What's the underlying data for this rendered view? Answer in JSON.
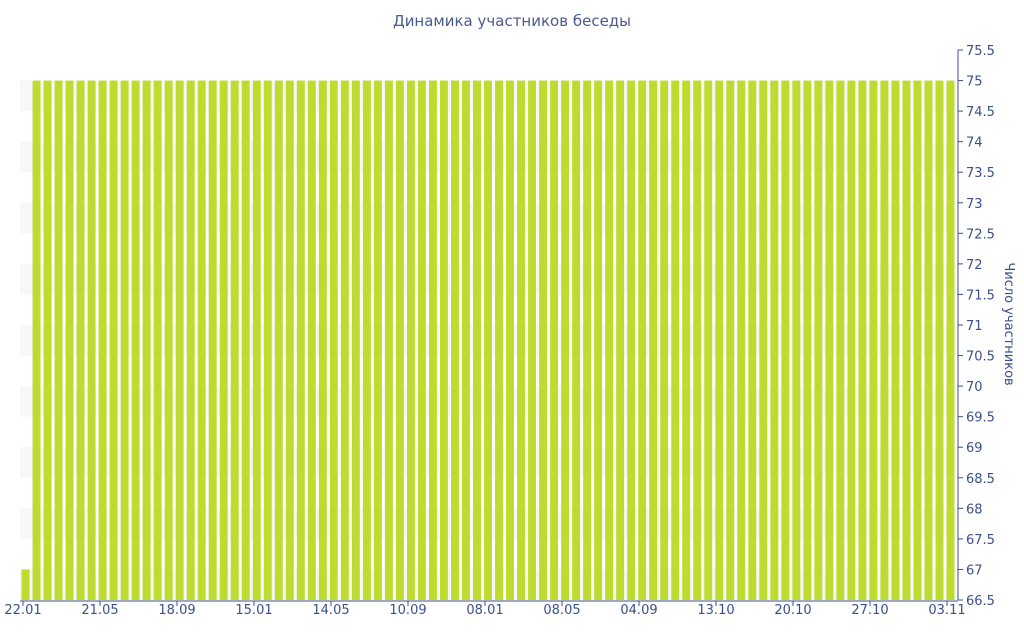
{
  "chart_data": {
    "type": "bar",
    "title": "Динамика участников беседы",
    "xlabel": "",
    "ylabel": "Число участников",
    "x_tick_labels": [
      "22.01",
      "21.05",
      "18.09",
      "15.01",
      "14.05",
      "10.09",
      "08.01",
      "08.05",
      "04.09",
      "13.10",
      "20.10",
      "27.10",
      "03.11"
    ],
    "y_ticks": [
      66.5,
      67,
      67.5,
      68,
      68.5,
      69,
      69.5,
      70,
      70.5,
      71,
      71.5,
      72,
      72.5,
      73,
      73.5,
      74,
      74.5,
      75,
      75.5
    ],
    "ylim": [
      66.5,
      75.5
    ],
    "y_axis_side": "right",
    "grid": false,
    "bar_color": "#bedc2f",
    "values": [
      67,
      75,
      75,
      75,
      75,
      75,
      75,
      75,
      75,
      75,
      75,
      75,
      75,
      75,
      75,
      75,
      75,
      75,
      75,
      75,
      75,
      75,
      75,
      75,
      75,
      75,
      75,
      75,
      75,
      75,
      75,
      75,
      75,
      75,
      75,
      75,
      75,
      75,
      75,
      75,
      75,
      75,
      75,
      75,
      75,
      75,
      75,
      75,
      75,
      75,
      75,
      75,
      75,
      75,
      75,
      75,
      75,
      75,
      75,
      75,
      75,
      75,
      75,
      75,
      75,
      75,
      75,
      75,
      75,
      75,
      75,
      75,
      75,
      75,
      75,
      75,
      75,
      75,
      75,
      75,
      75,
      75,
      75,
      75,
      75
    ]
  }
}
